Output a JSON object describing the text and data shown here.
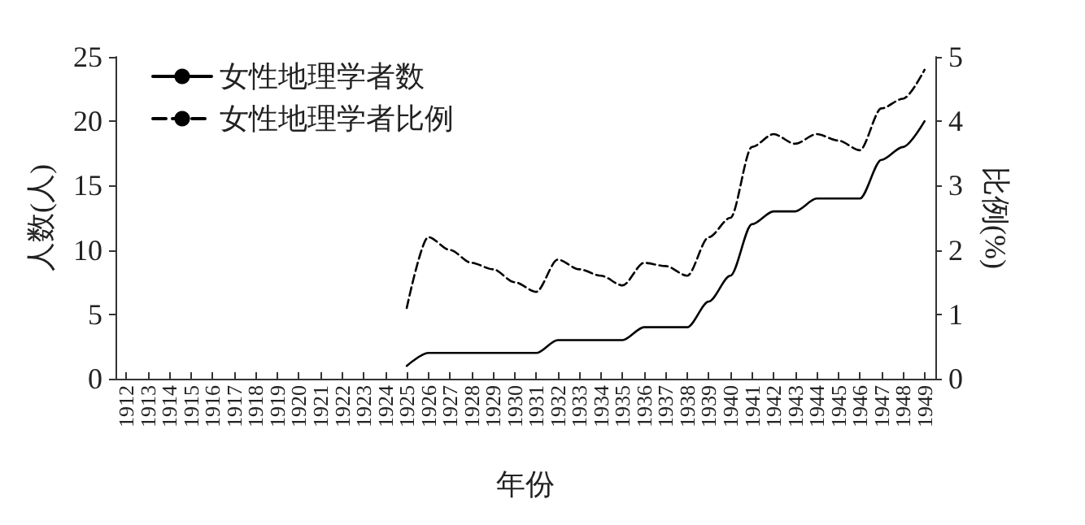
{
  "chart_data": {
    "type": "line",
    "xlabel": "年份",
    "ylabel": "人数(人)",
    "y2label": "比例(%)",
    "categories": [
      "1912",
      "1913",
      "1914",
      "1915",
      "1916",
      "1917",
      "1918",
      "1919",
      "1920",
      "1921",
      "1922",
      "1923",
      "1924",
      "1925",
      "1926",
      "1927",
      "1928",
      "1929",
      "1930",
      "1931",
      "1932",
      "1933",
      "1934",
      "1935",
      "1936",
      "1937",
      "1938",
      "1939",
      "1940",
      "1941",
      "1942",
      "1943",
      "1944",
      "1945",
      "1946",
      "1947",
      "1948",
      "1949"
    ],
    "series": [
      {
        "name": "女性地理学者数",
        "color": "#000000",
        "line_style": "solid",
        "values": [
          null,
          null,
          null,
          null,
          null,
          null,
          null,
          null,
          null,
          null,
          null,
          null,
          null,
          1,
          2,
          2,
          2,
          2,
          2,
          2,
          3,
          3,
          3,
          3,
          4,
          4,
          4,
          6,
          8,
          12,
          13,
          13,
          14,
          14,
          14,
          17,
          18,
          20
        ]
      },
      {
        "name": "女性地理学者比例",
        "color": "#000000",
        "line_style": "dashed",
        "axis": "y2",
        "values": [
          null,
          null,
          null,
          null,
          null,
          null,
          null,
          null,
          null,
          null,
          null,
          null,
          null,
          1.1,
          2.2,
          2.0,
          1.8,
          1.7,
          1.5,
          1.35,
          1.85,
          1.7,
          1.6,
          1.45,
          1.8,
          1.75,
          1.6,
          2.2,
          2.5,
          3.6,
          3.8,
          3.65,
          3.8,
          3.7,
          3.55,
          4.2,
          4.35,
          4.8
        ]
      }
    ],
    "ylim": [
      0,
      25
    ],
    "yticks": [
      0,
      5,
      10,
      15,
      20,
      25
    ],
    "y2lim": [
      0,
      5
    ],
    "y2ticks": [
      0,
      1,
      2,
      3,
      4,
      5
    ],
    "legend": "top left",
    "grid": false,
    "marker": "none"
  }
}
